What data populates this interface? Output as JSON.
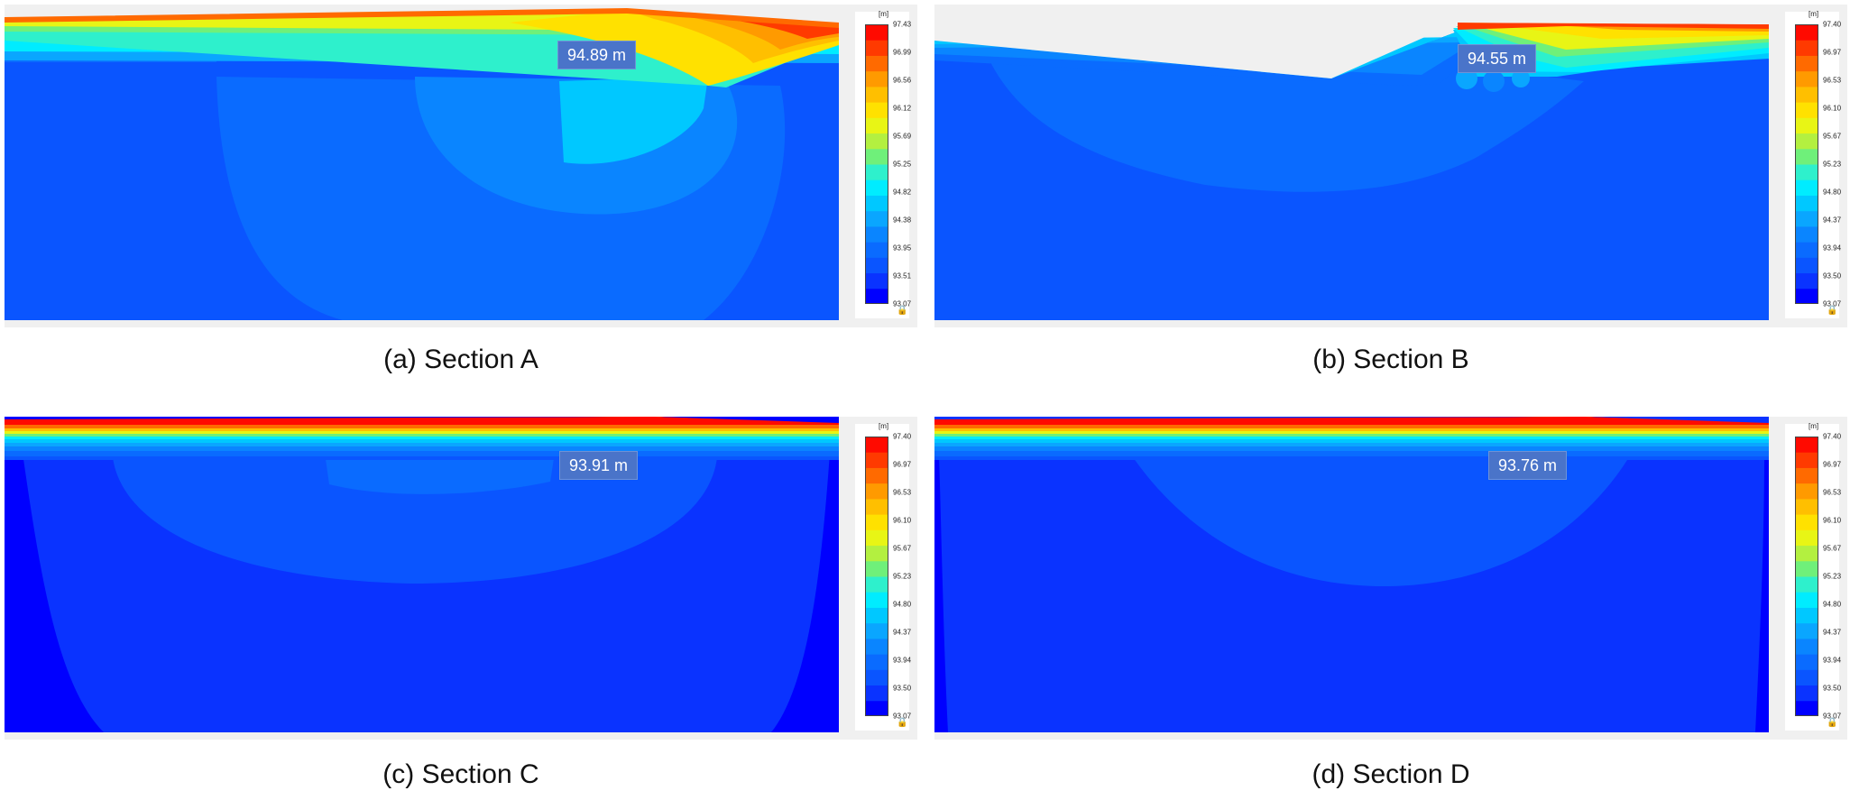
{
  "colors": {
    "scale": [
      "#0000ff",
      "#0a33ff",
      "#0a55ff",
      "#0a6bff",
      "#0a85ff",
      "#0aa6ff",
      "#00c8ff",
      "#00ecff",
      "#2ef0cc",
      "#6ff07a",
      "#b3f040",
      "#e8f515",
      "#ffe100",
      "#ffbf00",
      "#ff9a00",
      "#ff6a00",
      "#ff3a00",
      "#ff0a00"
    ],
    "callout": "#4a74c9",
    "panel_bg": "#f0f0f0"
  },
  "panels": [
    {
      "id": "a",
      "caption": "(a) Section A",
      "callout": "94.89 m",
      "legend": {
        "unit": "[m]",
        "ticks": [
          "97.43",
          "96.99",
          "96.56",
          "96.12",
          "95.69",
          "95.25",
          "94.82",
          "94.38",
          "93.95",
          "93.51",
          "93.07"
        ]
      }
    },
    {
      "id": "b",
      "caption": "(b) Section B",
      "callout": "94.55 m",
      "legend": {
        "unit": "[m]",
        "ticks": [
          "97.40",
          "96.97",
          "96.53",
          "96.10",
          "95.67",
          "95.23",
          "94.80",
          "94.37",
          "93.94",
          "93.50",
          "93.07"
        ]
      }
    },
    {
      "id": "c",
      "caption": "(c) Section C",
      "callout": "93.91 m",
      "legend": {
        "unit": "[m]",
        "ticks": [
          "97.40",
          "96.97",
          "96.53",
          "96.10",
          "95.67",
          "95.23",
          "94.80",
          "94.37",
          "93.94",
          "93.50",
          "93.07"
        ]
      }
    },
    {
      "id": "d",
      "caption": "(d) Section D",
      "callout": "93.76 m",
      "legend": {
        "unit": "[m]",
        "ticks": [
          "97.40",
          "96.97",
          "96.53",
          "96.10",
          "95.67",
          "95.23",
          "94.80",
          "94.37",
          "93.94",
          "93.50",
          "93.07"
        ]
      }
    }
  ]
}
